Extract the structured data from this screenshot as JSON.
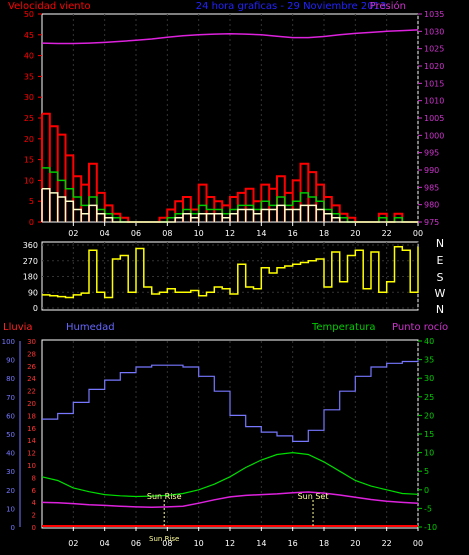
{
  "chart_data": [
    {
      "type": "line",
      "panel": "wind-pressure",
      "title": "24 hora graficas - 29 Noviembre 2013",
      "left_label": "Velocidad viento",
      "right_label": "Presión",
      "x_ticks": [
        "02",
        "04",
        "06",
        "08",
        "10",
        "12",
        "14",
        "16",
        "18",
        "20",
        "22",
        "00"
      ],
      "left_ticks": [
        "0",
        "5",
        "10",
        "15",
        "20",
        "25",
        "30",
        "35",
        "40",
        "45",
        "50"
      ],
      "right_ticks": [
        "975",
        "980",
        "985",
        "990",
        "995",
        "1000",
        "1005",
        "1010",
        "1015",
        "1020",
        "1025",
        "1030",
        "1035"
      ],
      "ylim_left": [
        0,
        50
      ],
      "ylim_right": [
        975,
        1035
      ],
      "colors": {
        "gust": "#ff0000",
        "average": "#00cc00",
        "wind": "#ffffcc",
        "pressure": "#dd22dd",
        "left_label": "#ff0000",
        "right_label": "#cc33cc",
        "title": "#2222ff"
      },
      "series": [
        {
          "key": "pressure",
          "x": [
            0,
            1,
            2,
            3,
            4,
            5,
            6,
            7,
            8,
            9,
            10,
            11,
            12,
            13,
            14,
            15,
            16,
            17,
            18,
            19,
            20,
            21,
            22,
            23,
            24
          ],
          "values": [
            1026.6,
            1026.5,
            1026.5,
            1026.6,
            1026.8,
            1027.1,
            1027.4,
            1027.8,
            1028.3,
            1028.7,
            1029.0,
            1029.2,
            1029.3,
            1029.2,
            1029.0,
            1028.6,
            1028.2,
            1028.2,
            1028.5,
            1029.0,
            1029.4,
            1029.7,
            1030.0,
            1030.2,
            1030.4
          ]
        },
        {
          "key": "gust",
          "x": [
            0,
            0.5,
            1,
            1.5,
            2,
            2.5,
            3,
            3.5,
            4,
            4.5,
            5,
            5.5,
            6,
            6.5,
            7,
            7.5,
            8,
            8.5,
            9,
            9.5,
            10,
            10.5,
            11,
            11.5,
            12,
            12.5,
            13,
            13.5,
            14,
            14.5,
            15,
            15.5,
            16,
            16.5,
            17,
            17.5,
            18,
            18.5,
            19,
            19.5,
            20,
            20.5,
            21,
            21.5,
            22,
            22.5,
            23,
            23.5,
            24
          ],
          "values": [
            26,
            23,
            21,
            16,
            11,
            9,
            14,
            7,
            4,
            2,
            1,
            0,
            0,
            0,
            0,
            1,
            3,
            5,
            6,
            3,
            9,
            6,
            5,
            4,
            6,
            7,
            8,
            5,
            9,
            8,
            11,
            7,
            10,
            14,
            12,
            9,
            6,
            4,
            2,
            1,
            0,
            0,
            0,
            2,
            0,
            2,
            0,
            0,
            0
          ]
        },
        {
          "key": "average",
          "x": [
            0,
            0.5,
            1,
            1.5,
            2,
            2.5,
            3,
            3.5,
            4,
            4.5,
            5,
            5.5,
            6,
            6.5,
            7,
            7.5,
            8,
            8.5,
            9,
            9.5,
            10,
            10.5,
            11,
            11.5,
            12,
            12.5,
            13,
            13.5,
            14,
            14.5,
            15,
            15.5,
            16,
            16.5,
            17,
            17.5,
            18,
            18.5,
            19,
            19.5,
            20,
            20.5,
            21,
            21.5,
            22,
            22.5,
            23,
            23.5,
            24
          ],
          "values": [
            13,
            12,
            10,
            8,
            6,
            4,
            6,
            3,
            2,
            1,
            0,
            0,
            0,
            0,
            0,
            0,
            1,
            2,
            3,
            2,
            4,
            3,
            3,
            2,
            3,
            4,
            4,
            3,
            5,
            4,
            6,
            4,
            5,
            7,
            6,
            5,
            3,
            2,
            1,
            0,
            0,
            0,
            0,
            1,
            0,
            1,
            0,
            0,
            0
          ]
        },
        {
          "key": "wind",
          "x": [
            0,
            0.5,
            1,
            1.5,
            2,
            2.5,
            3,
            3.5,
            4,
            4.5,
            5,
            5.5,
            6,
            6.5,
            7,
            7.5,
            8,
            8.5,
            9,
            9.5,
            10,
            10.5,
            11,
            11.5,
            12,
            12.5,
            13,
            13.5,
            14,
            14.5,
            15,
            15.5,
            16,
            16.5,
            17,
            17.5,
            18,
            18.5,
            19,
            19.5,
            20,
            20.5,
            21,
            21.5,
            22,
            22.5,
            23,
            23.5,
            24
          ],
          "values": [
            8,
            7,
            6,
            5,
            3,
            2,
            4,
            2,
            1,
            0,
            0,
            0,
            0,
            0,
            0,
            0,
            0,
            1,
            2,
            1,
            2,
            2,
            2,
            1,
            2,
            3,
            3,
            2,
            3,
            3,
            4,
            3,
            3,
            4,
            4,
            3,
            2,
            1,
            0,
            0,
            0,
            0,
            0,
            0,
            0,
            0,
            0,
            0,
            0
          ]
        }
      ]
    },
    {
      "type": "line",
      "panel": "wind-direction",
      "x_ticks": [
        "02",
        "04",
        "06",
        "08",
        "10",
        "12",
        "14",
        "16",
        "18",
        "20",
        "22",
        "00"
      ],
      "left_ticks": [
        "0",
        "90",
        "180",
        "270",
        "360"
      ],
      "right_ticks": [
        "N",
        "W",
        "S",
        "E",
        "N"
      ],
      "ylim": [
        0,
        360
      ],
      "colors": {
        "direction": "#ffff00"
      },
      "series": [
        {
          "key": "direction",
          "x": [
            0,
            0.5,
            1,
            1.5,
            2,
            2.5,
            3,
            3.5,
            4,
            4.5,
            5,
            5.5,
            6,
            6.5,
            7,
            7.5,
            8,
            8.5,
            9,
            9.5,
            10,
            10.5,
            11,
            11.5,
            12,
            12.5,
            13,
            13.5,
            14,
            14.5,
            15,
            15.5,
            16,
            16.5,
            17,
            17.5,
            18,
            18.5,
            19,
            19.5,
            20,
            20.5,
            21,
            21.5,
            22,
            22.5,
            23,
            23.5,
            24
          ],
          "values": [
            75,
            70,
            65,
            60,
            75,
            85,
            330,
            90,
            60,
            280,
            300,
            90,
            340,
            120,
            80,
            90,
            110,
            90,
            90,
            100,
            70,
            90,
            120,
            110,
            80,
            250,
            120,
            110,
            230,
            200,
            230,
            240,
            250,
            260,
            270,
            280,
            120,
            320,
            150,
            300,
            330,
            110,
            320,
            90,
            150,
            350,
            330,
            90,
            350
          ]
        }
      ]
    },
    {
      "type": "line",
      "panel": "rain-humidity-temperature",
      "left_label_rain": "Lluvia",
      "left_label_humidity": "Humedad",
      "right_label_temperature": "Temperatura",
      "right_label_dew": "Punto rocío",
      "x_ticks": [
        "02",
        "04",
        "06",
        "08",
        "10",
        "12",
        "14",
        "16",
        "18",
        "20",
        "22",
        "00"
      ],
      "humidity_ticks": [
        "0",
        "10",
        "20",
        "30",
        "40",
        "50",
        "60",
        "70",
        "80",
        "90",
        "100"
      ],
      "rain_ticks": [
        "0",
        "2",
        "4",
        "6",
        "8",
        "10",
        "12",
        "14",
        "16",
        "18",
        "20",
        "22",
        "24",
        "26",
        "28",
        "30"
      ],
      "temperature_ticks": [
        "-10",
        "-5",
        "0",
        "5",
        "10",
        "15",
        "20",
        "25",
        "30",
        "35",
        "40"
      ],
      "ylim_humidity": [
        0,
        100
      ],
      "ylim_temperature": [
        -10,
        40
      ],
      "annotations": [
        {
          "label": "Sun Rise",
          "x": 7.8
        },
        {
          "label": "Sun Set",
          "x": 17.3
        }
      ],
      "extra_labels": [
        "Sun Rise"
      ],
      "colors": {
        "humidity": "#7777ff",
        "temperature": "#00dd00",
        "dew": "#dd22dd",
        "rain": "#ff0000",
        "rain_label": "#ff2222",
        "humidity_label": "#6666ff",
        "temperature_label": "#00cc00",
        "dew_label": "#cc33cc",
        "annotation": "#ffff99"
      },
      "series": [
        {
          "key": "humidity",
          "x": [
            0,
            1,
            2,
            3,
            4,
            5,
            6,
            7,
            8,
            9,
            10,
            11,
            12,
            13,
            14,
            15,
            16,
            17,
            18,
            19,
            20,
            21,
            22,
            23,
            24
          ],
          "values": [
            58,
            61,
            67,
            74,
            79,
            83,
            86,
            87,
            87,
            86,
            81,
            73,
            60,
            54,
            51,
            49,
            46,
            52,
            63,
            73,
            81,
            86,
            88,
            89,
            90
          ]
        },
        {
          "key": "temperature",
          "x": [
            0,
            1,
            2,
            3,
            4,
            5,
            6,
            7,
            8,
            9,
            10,
            11,
            12,
            13,
            14,
            15,
            16,
            17,
            18,
            19,
            20,
            21,
            22,
            23,
            24
          ],
          "values": [
            3.5,
            2.5,
            0.5,
            -0.5,
            -1.3,
            -1.6,
            -1.8,
            -1.7,
            -1.5,
            -1,
            0,
            1.5,
            3.5,
            6,
            8,
            9.5,
            10,
            9.5,
            7.5,
            5,
            2.5,
            1,
            0,
            -1,
            -1.2
          ]
        },
        {
          "key": "dew",
          "x": [
            0,
            1,
            2,
            3,
            4,
            5,
            6,
            7,
            8,
            9,
            10,
            11,
            12,
            13,
            14,
            15,
            16,
            17,
            18,
            19,
            20,
            21,
            22,
            23,
            24
          ],
          "values": [
            -3.4,
            -3.5,
            -3.7,
            -4.0,
            -4.2,
            -4.4,
            -4.6,
            -4.7,
            -4.6,
            -4.4,
            -3.6,
            -2.7,
            -1.9,
            -1.5,
            -1.3,
            -1.1,
            -0.8,
            -0.6,
            -0.9,
            -1.4,
            -2.0,
            -2.6,
            -3.1,
            -3.4,
            -3.6
          ]
        },
        {
          "key": "rain",
          "x": [
            0,
            24
          ],
          "values": [
            0,
            0
          ]
        }
      ]
    }
  ]
}
